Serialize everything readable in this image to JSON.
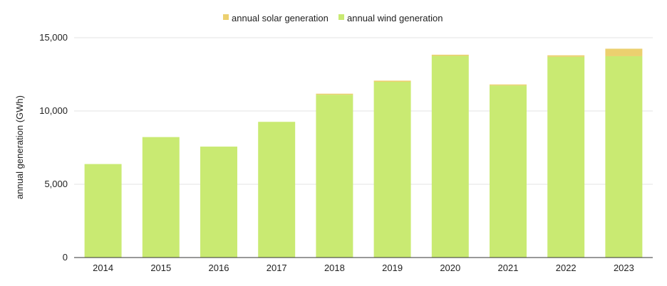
{
  "chart_data": {
    "type": "bar",
    "stacked": true,
    "categories": [
      "2014",
      "2015",
      "2016",
      "2017",
      "2018",
      "2019",
      "2020",
      "2021",
      "2022",
      "2023"
    ],
    "series": [
      {
        "name": "annual wind generation",
        "color": "#c9ea72",
        "values": [
          6380,
          8220,
          7570,
          9260,
          11110,
          11990,
          13760,
          11740,
          13700,
          13740
        ]
      },
      {
        "name": "annual solar generation",
        "color": "#ecd06f",
        "values": [
          0,
          0,
          0,
          0,
          70,
          80,
          80,
          70,
          100,
          510
        ]
      }
    ],
    "title": "",
    "xlabel": "",
    "ylabel": "annual generation (GWh)",
    "ylim": [
      0,
      15000
    ],
    "yticks": [
      "0",
      "5,000",
      "10,000",
      "15,000"
    ],
    "grid": true,
    "legend_position": "top-center",
    "legend_order": [
      "annual solar generation",
      "annual wind generation"
    ]
  }
}
